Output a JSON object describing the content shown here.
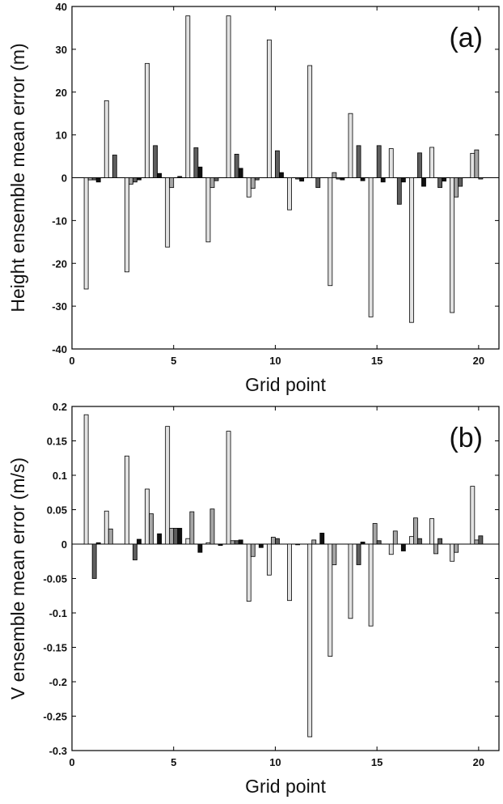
{
  "chart_data": [
    {
      "type": "bar",
      "annotation": "(a)",
      "xlabel": "Grid point",
      "ylabel": "Height ensemble mean error (m)",
      "x": [
        1,
        2,
        3,
        4,
        5,
        6,
        7,
        8,
        9,
        10,
        11,
        12,
        13,
        14,
        15,
        16,
        17,
        18,
        19,
        20
      ],
      "xlim": [
        0,
        21
      ],
      "xticks": [
        0,
        5,
        10,
        15,
        20
      ],
      "ylim": [
        -40,
        40
      ],
      "yticks": [
        -40,
        -30,
        -20,
        -10,
        0,
        10,
        20,
        30,
        40
      ],
      "series": [
        {
          "color": "#e2e2e2",
          "values": [
            -26,
            18,
            -22,
            26.7,
            -16.2,
            37.8,
            -15,
            37.8,
            -4.5,
            32.2,
            -7.5,
            26.2,
            -25.2,
            15,
            -32.5,
            6.8,
            -33.8,
            7.1,
            -31.5,
            5.7
          ]
        },
        {
          "color": "#a6a6a6",
          "values": [
            -0.5,
            0,
            -1.5,
            0,
            -2.3,
            0,
            -2.3,
            0,
            -2.5,
            0,
            0,
            0,
            1.2,
            0,
            0,
            0,
            0,
            0,
            -4.5,
            6.5
          ]
        },
        {
          "color": "#5e5e5e",
          "values": [
            -0.5,
            5.3,
            -1,
            7.5,
            0,
            7,
            -0.7,
            5.5,
            -0.5,
            6.3,
            -0.3,
            -2.3,
            -0.3,
            7.5,
            7.5,
            -6.2,
            5.8,
            -2.3,
            -2,
            -0.3
          ]
        },
        {
          "color": "#111111",
          "values": [
            -1,
            0,
            -0.5,
            1,
            0.3,
            2.5,
            0,
            2.2,
            0,
            1.2,
            -0.8,
            0,
            -0.5,
            -0.7,
            -1,
            -1,
            -2,
            -0.8,
            0,
            0
          ]
        }
      ]
    },
    {
      "type": "bar",
      "annotation": "(b)",
      "xlabel": "Grid point",
      "ylabel": "V ensemble mean error (m/s)",
      "x": [
        1,
        2,
        3,
        4,
        5,
        6,
        7,
        8,
        9,
        10,
        11,
        12,
        13,
        14,
        15,
        16,
        17,
        18,
        19,
        20
      ],
      "xlim": [
        0,
        21
      ],
      "xticks": [
        0,
        5,
        10,
        15,
        20
      ],
      "ylim": [
        -0.3,
        0.2
      ],
      "yticks": [
        -0.3,
        -0.25,
        -0.2,
        -0.15,
        -0.1,
        -0.05,
        0,
        0.05,
        0.1,
        0.15,
        0.2
      ],
      "series": [
        {
          "color": "#e2e2e2",
          "values": [
            0.188,
            0.048,
            0.128,
            0.08,
            0.171,
            0.008,
            0.002,
            0.164,
            -0.083,
            -0.045,
            -0.082,
            -0.28,
            -0.163,
            -0.108,
            -0.119,
            -0.015,
            0.011,
            0.037,
            -0.025,
            0.084
          ]
        },
        {
          "color": "#a6a6a6",
          "values": [
            0,
            0.022,
            0,
            0.044,
            0.023,
            0.047,
            0.051,
            0.005,
            -0.018,
            0.01,
            0,
            0.006,
            -0.03,
            0,
            0.03,
            0.019,
            0.038,
            -0.014,
            -0.012,
            0.006
          ]
        },
        {
          "color": "#5e5e5e",
          "values": [
            -0.05,
            0,
            -0.023,
            0,
            0.023,
            0,
            0,
            0.005,
            0,
            0.008,
            -0.001,
            0,
            0,
            -0.03,
            0.005,
            0,
            0.008,
            0.008,
            0,
            0.012
          ]
        },
        {
          "color": "#111111",
          "values": [
            0.002,
            0,
            0.007,
            0.015,
            0.023,
            -0.012,
            -0.002,
            0.006,
            -0.005,
            0,
            0,
            0.016,
            0,
            0.003,
            0,
            -0.01,
            0,
            0,
            0,
            0
          ]
        }
      ]
    }
  ]
}
